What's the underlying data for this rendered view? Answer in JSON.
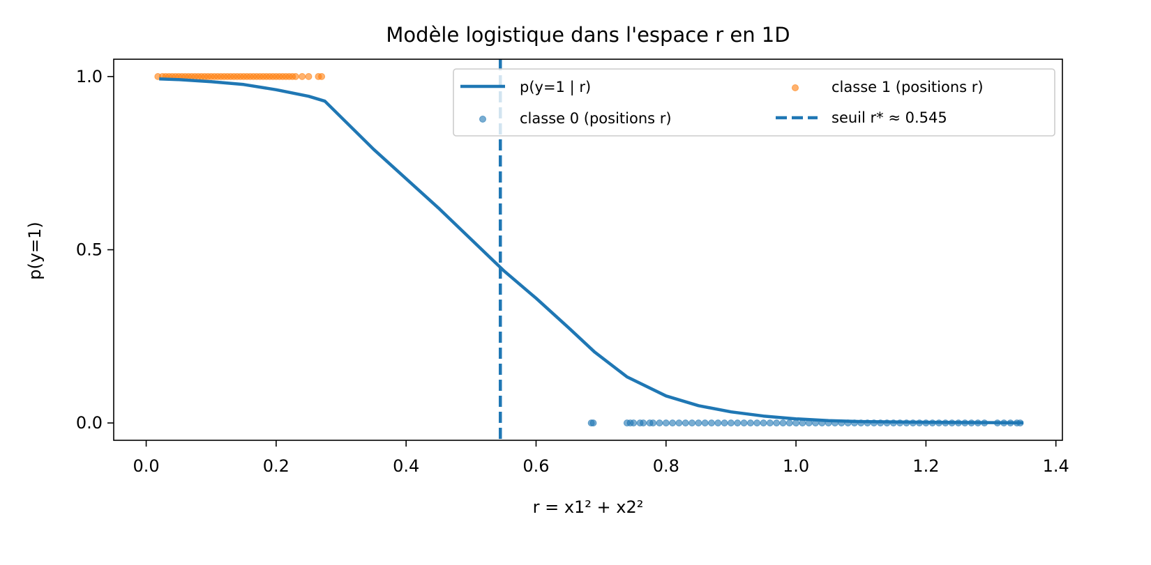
{
  "chart_data": {
    "type": "line",
    "title": "Modèle logistique dans l'espace r en 1D",
    "xlabel": "r = x1² + x2²",
    "ylabel": "p(y=1)",
    "xlim": [
      -0.05,
      1.41
    ],
    "ylim": [
      -0.05,
      1.05
    ],
    "xticks": [
      0.0,
      0.2,
      0.4,
      0.6,
      0.8,
      1.0,
      1.2,
      1.4
    ],
    "xtick_labels": [
      "0.0",
      "0.2",
      "0.4",
      "0.6",
      "0.8",
      "1.0",
      "1.2",
      "1.4"
    ],
    "yticks": [
      0.0,
      0.5,
      1.0
    ],
    "ytick_labels": [
      "0.0",
      "0.5",
      "1.0"
    ],
    "grid": false,
    "legend": {
      "placement": "upper right",
      "columns": 2,
      "entries": [
        {
          "label": "p(y=1 | r)",
          "kind": "line"
        },
        {
          "label": "classe 0 (positions r)",
          "kind": "scatter"
        },
        {
          "label": "classe 1 (positions r)",
          "kind": "scatter"
        },
        {
          "label": "seuil r* ≈ 0.545",
          "kind": "dashed-line"
        }
      ]
    },
    "colors": {
      "blue": "#1f77b4",
      "orange": "#ff7f0e"
    },
    "series": [
      {
        "name": "p(y=1 | r)",
        "type": "line",
        "color": "#1f77b4",
        "x": [
          0.02,
          0.05,
          0.1,
          0.15,
          0.2,
          0.25,
          0.275,
          0.35,
          0.45,
          0.55,
          0.6,
          0.65,
          0.69,
          0.74,
          0.8,
          0.85,
          0.9,
          0.95,
          1.0,
          1.05,
          1.1,
          1.2,
          1.3,
          1.35
        ],
        "y": [
          0.993,
          0.991,
          0.985,
          0.977,
          0.962,
          0.943,
          0.929,
          0.79,
          0.62,
          0.44,
          0.36,
          0.275,
          0.205,
          0.133,
          0.078,
          0.05,
          0.032,
          0.02,
          0.012,
          0.007,
          0.004,
          0.002,
          0.001,
          0.0005
        ]
      },
      {
        "name": "classe 0 (positions r)",
        "type": "scatter",
        "color": "#1f77b4",
        "x": [
          0.685,
          0.688,
          0.74,
          0.745,
          0.75,
          0.76,
          0.765,
          0.775,
          0.78,
          0.79,
          0.8,
          0.81,
          0.82,
          0.83,
          0.84,
          0.85,
          0.86,
          0.87,
          0.88,
          0.89,
          0.9,
          0.91,
          0.92,
          0.93,
          0.94,
          0.95,
          0.96,
          0.97,
          0.98,
          0.99,
          1.0,
          1.01,
          1.02,
          1.03,
          1.04,
          1.05,
          1.06,
          1.07,
          1.08,
          1.09,
          1.1,
          1.11,
          1.12,
          1.13,
          1.14,
          1.15,
          1.16,
          1.17,
          1.18,
          1.19,
          1.2,
          1.21,
          1.22,
          1.23,
          1.24,
          1.25,
          1.26,
          1.27,
          1.28,
          1.29,
          1.31,
          1.32,
          1.33,
          1.34,
          1.345
        ],
        "y": [
          0,
          0,
          0,
          0,
          0,
          0,
          0,
          0,
          0,
          0,
          0,
          0,
          0,
          0,
          0,
          0,
          0,
          0,
          0,
          0,
          0,
          0,
          0,
          0,
          0,
          0,
          0,
          0,
          0,
          0,
          0,
          0,
          0,
          0,
          0,
          0,
          0,
          0,
          0,
          0,
          0,
          0,
          0,
          0,
          0,
          0,
          0,
          0,
          0,
          0,
          0,
          0,
          0,
          0,
          0,
          0,
          0,
          0,
          0,
          0,
          0,
          0,
          0,
          0,
          0
        ]
      },
      {
        "name": "classe 1 (positions r)",
        "type": "scatter",
        "color": "#ff7f0e",
        "x": [
          0.018,
          0.025,
          0.03,
          0.035,
          0.04,
          0.045,
          0.05,
          0.055,
          0.06,
          0.065,
          0.07,
          0.075,
          0.08,
          0.085,
          0.09,
          0.095,
          0.1,
          0.105,
          0.11,
          0.115,
          0.12,
          0.125,
          0.13,
          0.135,
          0.14,
          0.145,
          0.15,
          0.155,
          0.16,
          0.165,
          0.17,
          0.175,
          0.18,
          0.185,
          0.19,
          0.195,
          0.2,
          0.205,
          0.21,
          0.215,
          0.22,
          0.225,
          0.23,
          0.24,
          0.25,
          0.265,
          0.27
        ],
        "y": [
          1,
          1,
          1,
          1,
          1,
          1,
          1,
          1,
          1,
          1,
          1,
          1,
          1,
          1,
          1,
          1,
          1,
          1,
          1,
          1,
          1,
          1,
          1,
          1,
          1,
          1,
          1,
          1,
          1,
          1,
          1,
          1,
          1,
          1,
          1,
          1,
          1,
          1,
          1,
          1,
          1,
          1,
          1,
          1,
          1,
          1,
          1
        ]
      },
      {
        "name": "seuil r* ≈ 0.545",
        "type": "vline",
        "color": "#1f77b4",
        "x": 0.545
      }
    ]
  }
}
